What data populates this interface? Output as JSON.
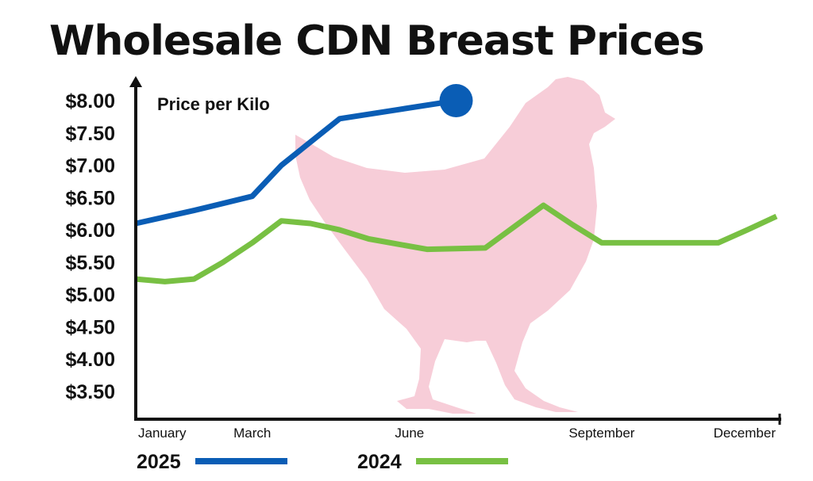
{
  "chart_data": {
    "type": "line",
    "title": "Wholesale CDN Breast Prices",
    "ylabel": "Price per Kilo",
    "xlabel": "",
    "ylim": [
      3.0,
      8.3
    ],
    "y_ticks": [
      "$3.50",
      "$4.00",
      "$4.50",
      "$5.00",
      "$5.50",
      "$6.00",
      "$6.50",
      "$7.00",
      "$7.50",
      "$8.00"
    ],
    "y_tick_values": [
      3.5,
      4.0,
      4.5,
      5.0,
      5.5,
      6.0,
      6.5,
      7.0,
      7.5,
      8.0
    ],
    "x_ticks": [
      "January",
      "March",
      "June",
      "September",
      "December"
    ],
    "x_tick_values": [
      1,
      3,
      6,
      9,
      12
    ],
    "xlim": [
      1,
      12
    ],
    "legend_position": "bottom",
    "series": [
      {
        "name": "2025",
        "color": "#0a5db5",
        "x": [
          1,
          2,
          3,
          3.5,
          4.5,
          5.5,
          6.5
        ],
        "y": [
          6.1,
          6.3,
          6.52,
          7.0,
          7.72,
          7.86,
          8.0
        ],
        "end_marker": true
      },
      {
        "name": "2024",
        "color": "#78c043",
        "x": [
          1,
          1.5,
          2,
          2.5,
          3,
          3.5,
          4,
          4.5,
          5,
          5.5,
          6,
          6.5,
          7,
          7.5,
          8,
          8.5,
          9,
          9.5,
          10,
          10.5,
          11,
          11.5,
          12
        ],
        "y": [
          5.24,
          5.2,
          5.24,
          5.5,
          5.8,
          6.14,
          6.1,
          6.0,
          5.86,
          5.78,
          5.7,
          5.71,
          5.72,
          6.05,
          6.38,
          6.08,
          5.8,
          5.8,
          5.8,
          5.8,
          5.8,
          6.0,
          6.21
        ]
      }
    ]
  },
  "decoration": {
    "silhouette": "chicken-silhouette",
    "silhouette_color": "#f7cdd8"
  }
}
